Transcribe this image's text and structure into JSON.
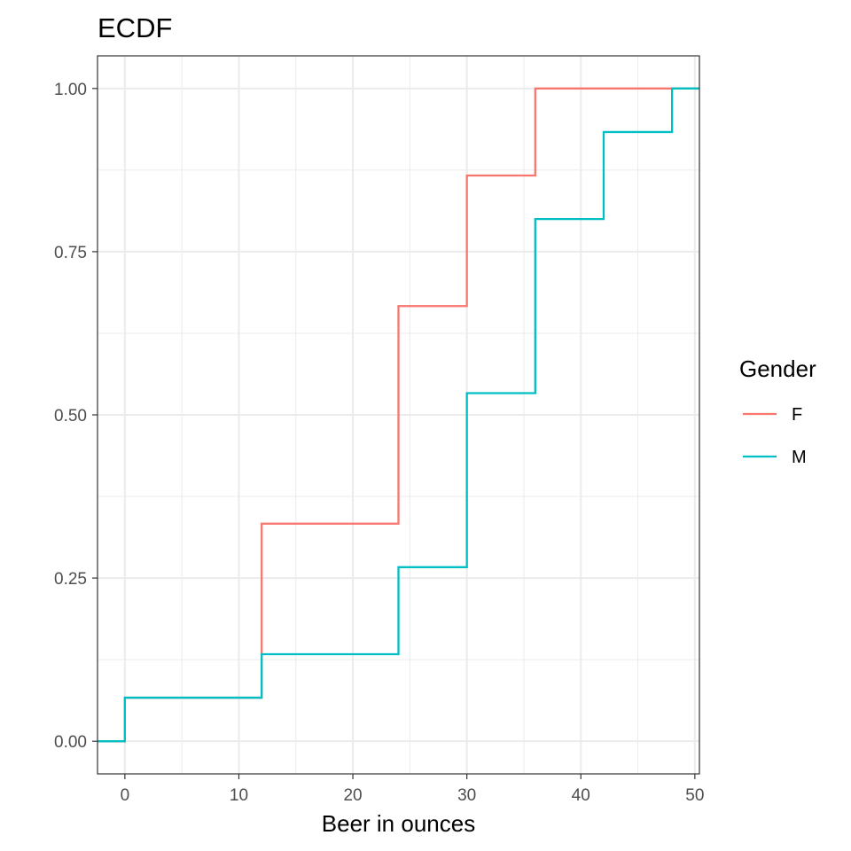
{
  "chart_data": {
    "type": "line",
    "subtype": "ecdf-step",
    "title": "ECDF",
    "xlabel": "Beer in ounces",
    "ylabel": "",
    "xlim": [
      -2.4,
      50.4
    ],
    "ylim": [
      -0.05,
      1.05
    ],
    "x_ticks": [
      0,
      10,
      20,
      30,
      40,
      50
    ],
    "y_ticks": [
      0.0,
      0.25,
      0.5,
      0.75,
      1.0
    ],
    "x_tick_labels": [
      "0",
      "10",
      "20",
      "30",
      "40",
      "50"
    ],
    "y_tick_labels": [
      "0.00",
      "0.25",
      "0.50",
      "0.75",
      "1.00"
    ],
    "grid": true,
    "legend": {
      "title": "Gender",
      "position": "right"
    },
    "series": [
      {
        "name": "F",
        "color": "#F8766D",
        "x": [
          0,
          12,
          24,
          30,
          36
        ],
        "y": [
          0.0667,
          0.3333,
          0.6667,
          0.8667,
          1.0
        ]
      },
      {
        "name": "M",
        "color": "#00BFC4",
        "x": [
          0,
          12,
          24,
          30,
          36,
          42,
          48
        ],
        "y": [
          0.0667,
          0.1333,
          0.2667,
          0.5333,
          0.8,
          0.9333,
          1.0
        ]
      }
    ]
  }
}
